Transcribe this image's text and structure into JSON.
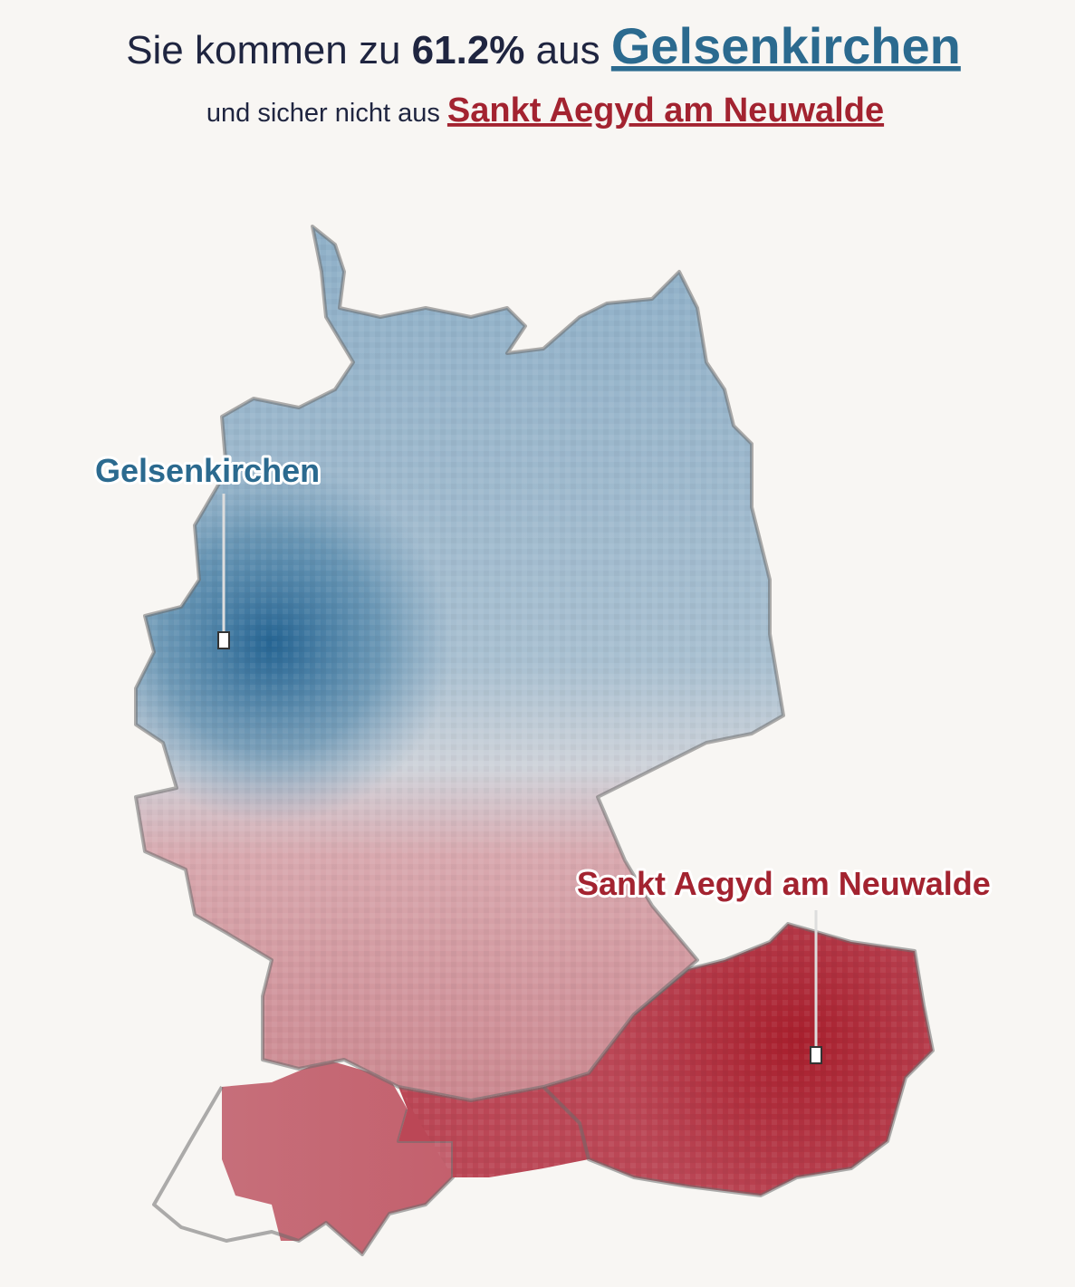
{
  "headline": {
    "prefix": "Sie kommen zu",
    "percent": "61.2%",
    "middle": "aus",
    "place": "Gelsenkirchen"
  },
  "subline": {
    "prefix": "und sicher nicht aus",
    "place": "Sankt Aegyd am Neuwalde"
  },
  "map": {
    "labels": [
      {
        "text": "Gelsenkirchen"
      },
      {
        "text": "Sankt Aegyd am Neuwalde"
      }
    ]
  }
}
